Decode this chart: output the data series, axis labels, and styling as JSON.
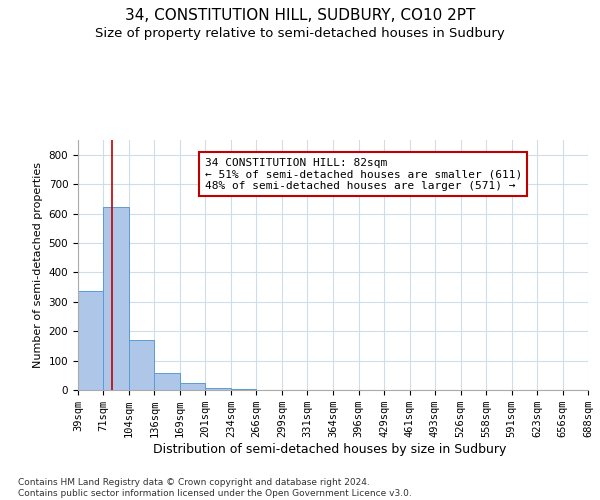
{
  "title": "34, CONSTITUTION HILL, SUDBURY, CO10 2PT",
  "subtitle": "Size of property relative to semi-detached houses in Sudbury",
  "xlabel": "Distribution of semi-detached houses by size in Sudbury",
  "ylabel": "Number of semi-detached properties",
  "footnote": "Contains HM Land Registry data © Crown copyright and database right 2024.\nContains public sector information licensed under the Open Government Licence v3.0.",
  "bar_edges": [
    39,
    71,
    104,
    136,
    169,
    201,
    234,
    266,
    299,
    331,
    364,
    396,
    429,
    461,
    493,
    526,
    558,
    591,
    623,
    656,
    688
  ],
  "bar_heights": [
    335,
    622,
    170,
    58,
    23,
    8,
    3,
    1,
    0,
    0,
    0,
    0,
    0,
    0,
    0,
    0,
    0,
    0,
    0,
    0
  ],
  "bar_color": "#aec6e8",
  "bar_edge_color": "#5b9bd5",
  "property_size": 82,
  "vline_color": "#c00000",
  "annotation_text": "34 CONSTITUTION HILL: 82sqm\n← 51% of semi-detached houses are smaller (611)\n48% of semi-detached houses are larger (571) →",
  "annotation_box_color": "#ffffff",
  "annotation_box_edge_color": "#c00000",
  "ylim": [
    0,
    850
  ],
  "yticks": [
    0,
    100,
    200,
    300,
    400,
    500,
    600,
    700,
    800
  ],
  "background_color": "#ffffff",
  "grid_color": "#d0dce8",
  "title_fontsize": 11,
  "subtitle_fontsize": 9.5,
  "xlabel_fontsize": 9,
  "ylabel_fontsize": 8,
  "tick_fontsize": 7.5,
  "annotation_fontsize": 8
}
